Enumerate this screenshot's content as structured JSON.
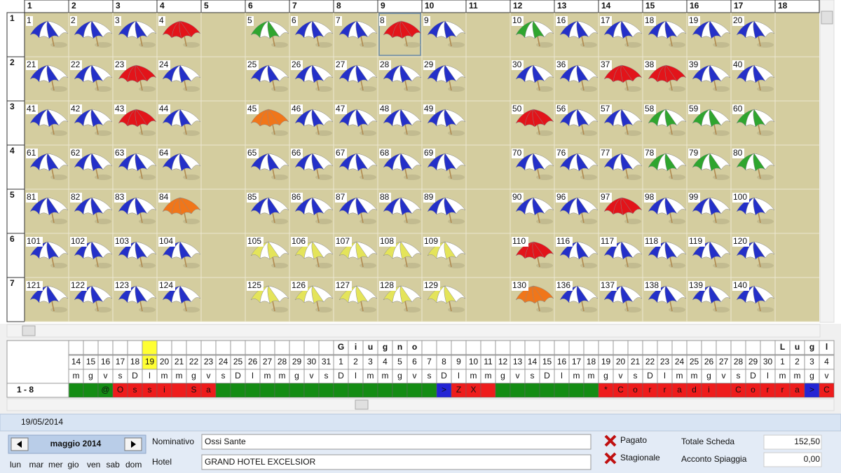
{
  "grid": {
    "columns": [
      "1",
      "2",
      "3",
      "4",
      "5",
      "6",
      "7",
      "8",
      "9",
      "10",
      "11",
      "12",
      "13",
      "14",
      "15",
      "16",
      "17",
      "18"
    ],
    "row_headers": [
      "1",
      "2",
      "3",
      "4",
      "5",
      "6",
      "7"
    ],
    "umbrella_colors": {
      "blue": {
        "fill": "#2430c8",
        "striped": true
      },
      "red": {
        "fill": "#e2141a",
        "striped": false
      },
      "green": {
        "fill": "#2fa52f",
        "striped": true
      },
      "orange": {
        "fill": "#f0761a",
        "striped": false
      },
      "yellow": {
        "fill": "#e4e45a",
        "striped": true
      }
    },
    "rows": [
      [
        {
          "label": "1",
          "color": "blue"
        },
        {
          "label": "2",
          "color": "blue"
        },
        {
          "label": "3",
          "color": "blue"
        },
        {
          "label": "4",
          "color": "red"
        },
        null,
        {
          "label": "5",
          "color": "green"
        },
        {
          "label": "6",
          "color": "blue"
        },
        {
          "label": "7",
          "color": "blue"
        },
        {
          "label": "8",
          "color": "red",
          "selected": true
        },
        {
          "label": "9",
          "color": "blue"
        },
        null,
        {
          "label": "10",
          "color": "green"
        },
        {
          "label": "16",
          "color": "blue"
        },
        {
          "label": "17",
          "color": "blue"
        },
        {
          "label": "18",
          "color": "blue"
        },
        {
          "label": "19",
          "color": "blue"
        },
        {
          "label": "20",
          "color": "blue"
        },
        null
      ],
      [
        {
          "label": "21",
          "color": "blue"
        },
        {
          "label": "22",
          "color": "blue"
        },
        {
          "label": "23",
          "color": "red"
        },
        {
          "label": "24",
          "color": "blue"
        },
        null,
        {
          "label": "25",
          "color": "blue"
        },
        {
          "label": "26",
          "color": "blue"
        },
        {
          "label": "27",
          "color": "blue"
        },
        {
          "label": "28",
          "color": "blue"
        },
        {
          "label": "29",
          "color": "blue"
        },
        null,
        {
          "label": "30",
          "color": "blue"
        },
        {
          "label": "36",
          "color": "blue"
        },
        {
          "label": "37",
          "color": "red"
        },
        {
          "label": "38",
          "color": "red"
        },
        {
          "label": "39",
          "color": "blue"
        },
        {
          "label": "40",
          "color": "blue"
        },
        null
      ],
      [
        {
          "label": "41",
          "color": "blue"
        },
        {
          "label": "42",
          "color": "blue"
        },
        {
          "label": "43",
          "color": "red"
        },
        {
          "label": "44",
          "color": "blue"
        },
        null,
        {
          "label": "45",
          "color": "orange"
        },
        {
          "label": "46",
          "color": "blue"
        },
        {
          "label": "47",
          "color": "blue"
        },
        {
          "label": "48",
          "color": "blue"
        },
        {
          "label": "49",
          "color": "blue"
        },
        null,
        {
          "label": "50",
          "color": "red"
        },
        {
          "label": "56",
          "color": "blue"
        },
        {
          "label": "57",
          "color": "blue"
        },
        {
          "label": "58",
          "color": "green"
        },
        {
          "label": "59",
          "color": "green"
        },
        {
          "label": "60",
          "color": "green"
        },
        null
      ],
      [
        {
          "label": "61",
          "color": "blue"
        },
        {
          "label": "62",
          "color": "blue"
        },
        {
          "label": "63",
          "color": "blue"
        },
        {
          "label": "64",
          "color": "blue"
        },
        null,
        {
          "label": "65",
          "color": "blue"
        },
        {
          "label": "66",
          "color": "blue"
        },
        {
          "label": "67",
          "color": "blue"
        },
        {
          "label": "68",
          "color": "blue"
        },
        {
          "label": "69",
          "color": "blue"
        },
        null,
        {
          "label": "70",
          "color": "blue"
        },
        {
          "label": "76",
          "color": "blue"
        },
        {
          "label": "77",
          "color": "blue"
        },
        {
          "label": "78",
          "color": "green"
        },
        {
          "label": "79",
          "color": "green"
        },
        {
          "label": "80",
          "color": "green"
        },
        null
      ],
      [
        {
          "label": "81",
          "color": "blue"
        },
        {
          "label": "82",
          "color": "blue"
        },
        {
          "label": "83",
          "color": "blue"
        },
        {
          "label": "84",
          "color": "orange"
        },
        null,
        {
          "label": "85",
          "color": "blue"
        },
        {
          "label": "86",
          "color": "blue"
        },
        {
          "label": "87",
          "color": "blue"
        },
        {
          "label": "88",
          "color": "blue"
        },
        {
          "label": "89",
          "color": "blue"
        },
        null,
        {
          "label": "90",
          "color": "blue"
        },
        {
          "label": "96",
          "color": "blue"
        },
        {
          "label": "97",
          "color": "red"
        },
        {
          "label": "98",
          "color": "blue"
        },
        {
          "label": "99",
          "color": "blue"
        },
        {
          "label": "100",
          "color": "blue"
        },
        null
      ],
      [
        {
          "label": "101",
          "color": "blue"
        },
        {
          "label": "102",
          "color": "blue"
        },
        {
          "label": "103",
          "color": "blue"
        },
        {
          "label": "104",
          "color": "blue"
        },
        null,
        {
          "label": "105",
          "color": "yellow"
        },
        {
          "label": "106",
          "color": "yellow"
        },
        {
          "label": "107",
          "color": "yellow"
        },
        {
          "label": "108",
          "color": "yellow"
        },
        {
          "label": "109",
          "color": "yellow"
        },
        null,
        {
          "label": "110",
          "color": "red"
        },
        {
          "label": "116",
          "color": "blue"
        },
        {
          "label": "117",
          "color": "blue"
        },
        {
          "label": "118",
          "color": "blue"
        },
        {
          "label": "119",
          "color": "blue"
        },
        {
          "label": "120",
          "color": "blue"
        },
        null
      ],
      [
        {
          "label": "121",
          "color": "blue"
        },
        {
          "label": "122",
          "color": "blue"
        },
        {
          "label": "123",
          "color": "blue"
        },
        {
          "label": "124",
          "color": "blue"
        },
        null,
        {
          "label": "125",
          "color": "yellow"
        },
        {
          "label": "126",
          "color": "yellow"
        },
        {
          "label": "127",
          "color": "yellow"
        },
        {
          "label": "128",
          "color": "yellow"
        },
        {
          "label": "129",
          "color": "yellow"
        },
        null,
        {
          "label": "130",
          "color": "orange"
        },
        {
          "label": "136",
          "color": "blue"
        },
        {
          "label": "137",
          "color": "blue"
        },
        {
          "label": "138",
          "color": "blue"
        },
        {
          "label": "139",
          "color": "blue"
        },
        {
          "label": "140",
          "color": "blue"
        },
        null
      ]
    ]
  },
  "calendar": {
    "month_row": [
      null,
      null,
      null,
      null,
      null,
      null,
      null,
      null,
      null,
      null,
      null,
      null,
      null,
      null,
      null,
      null,
      null,
      null,
      "G",
      "i",
      "u",
      "g",
      "n",
      "o",
      null,
      null,
      null,
      null,
      null,
      null,
      null,
      null,
      null,
      null,
      null,
      null,
      null,
      null,
      null,
      null,
      null,
      null,
      null,
      null,
      null,
      null,
      null,
      null,
      "L",
      "u",
      "g",
      "l"
    ],
    "days": [
      "14",
      "15",
      "16",
      "17",
      "18",
      "19",
      "20",
      "21",
      "22",
      "23",
      "24",
      "25",
      "26",
      "27",
      "28",
      "29",
      "30",
      "31",
      "1",
      "2",
      "3",
      "4",
      "5",
      "6",
      "7",
      "8",
      "9",
      "10",
      "11",
      "12",
      "13",
      "14",
      "15",
      "16",
      "17",
      "18",
      "19",
      "20",
      "21",
      "22",
      "23",
      "24",
      "25",
      "26",
      "27",
      "28",
      "29",
      "30",
      "1",
      "2",
      "3",
      "4"
    ],
    "weekdays": [
      "m",
      "g",
      "v",
      "s",
      "D",
      "l",
      "m",
      "m",
      "g",
      "v",
      "s",
      "D",
      "l",
      "m",
      "m",
      "g",
      "v",
      "s",
      "D",
      "l",
      "m",
      "m",
      "g",
      "v",
      "s",
      "D",
      "l",
      "m",
      "m",
      "g",
      "v",
      "s",
      "D",
      "l",
      "m",
      "m",
      "g",
      "v",
      "s",
      "D",
      "l",
      "m",
      "m",
      "g",
      "v",
      "s",
      "D",
      "l",
      "m",
      "m",
      "g",
      "v"
    ],
    "today": "19",
    "cell_colors": {
      "green": "#148c14",
      "red": "#ee1c1c",
      "blue": "#2424d4"
    },
    "booking": {
      "label": "1 - 8",
      "cells": [
        {
          "color": "green"
        },
        {
          "color": "green"
        },
        {
          "text": "@",
          "color": "green"
        },
        {
          "text": "O",
          "color": "red"
        },
        {
          "text": "s",
          "color": "red"
        },
        {
          "text": "s",
          "color": "red"
        },
        {
          "text": "i",
          "color": "red"
        },
        {
          "color": "red"
        },
        {
          "text": "S",
          "color": "red"
        },
        {
          "text": "a",
          "color": "red"
        },
        {
          "color": "green"
        },
        {
          "color": "green"
        },
        {
          "color": "green"
        },
        {
          "color": "green"
        },
        {
          "color": "green"
        },
        {
          "color": "green"
        },
        {
          "color": "green"
        },
        {
          "color": "green"
        },
        {
          "color": "green"
        },
        {
          "color": "green"
        },
        {
          "color": "green"
        },
        {
          "color": "green"
        },
        {
          "color": "green"
        },
        {
          "color": "green"
        },
        {
          "color": "green"
        },
        {
          "text": ">",
          "color": "blue"
        },
        {
          "text": "Z",
          "color": "red"
        },
        {
          "text": "X",
          "color": "red"
        },
        {
          "color": "red"
        },
        {
          "color": "green"
        },
        {
          "color": "green"
        },
        {
          "color": "green"
        },
        {
          "color": "green"
        },
        {
          "color": "green"
        },
        {
          "color": "green"
        },
        {
          "color": "green"
        },
        {
          "text": "*",
          "color": "red"
        },
        {
          "text": "C",
          "color": "red"
        },
        {
          "text": "o",
          "color": "red"
        },
        {
          "text": "r",
          "color": "red"
        },
        {
          "text": "r",
          "color": "red"
        },
        {
          "text": "a",
          "color": "red"
        },
        {
          "text": "d",
          "color": "red"
        },
        {
          "text": "i",
          "color": "red"
        },
        {
          "color": "red"
        },
        {
          "text": "C",
          "color": "red"
        },
        {
          "text": "o",
          "color": "red"
        },
        {
          "text": "r",
          "color": "red"
        },
        {
          "text": "r",
          "color": "red"
        },
        {
          "text": "a",
          "color": "red"
        },
        {
          "text": ">",
          "color": "blue"
        },
        {
          "text": "C",
          "color": "red"
        }
      ]
    }
  },
  "footer": {
    "date": "19/05/2014"
  },
  "nav": {
    "month": "maggio 2014",
    "weekdays": [
      "lun",
      "mar",
      "mer",
      "gio",
      "ven",
      "sab",
      "dom"
    ]
  },
  "form": {
    "fields": [
      {
        "label": "Nominativo",
        "value": "Ossi Sante"
      },
      {
        "label": "Hotel",
        "value": "GRAND HOTEL EXCELSIOR"
      }
    ]
  },
  "status": [
    "Pagato",
    "Stagionale"
  ],
  "totals": [
    {
      "label": "Totale Scheda",
      "value": "152,50"
    },
    {
      "label": "Acconto Spiaggia",
      "value": "0,00"
    }
  ]
}
